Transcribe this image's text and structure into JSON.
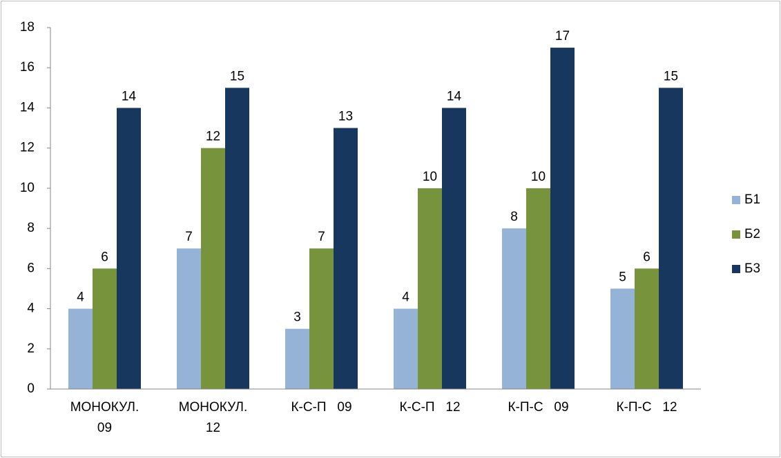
{
  "chart_data": {
    "type": "bar",
    "categories": [
      "МОНОКУЛ. 09",
      "МОНОКУЛ. 12",
      "К-С-П   09",
      "К-С-П   12",
      "К-П-С   09",
      "К-П-С   12"
    ],
    "series": [
      {
        "name": "Б1",
        "color": "#95b3d7",
        "values": [
          4,
          7,
          3,
          4,
          8,
          5
        ]
      },
      {
        "name": "Б2",
        "color": "#77933c",
        "values": [
          6,
          12,
          7,
          10,
          10,
          6
        ]
      },
      {
        "name": "Б3",
        "color": "#17375e",
        "values": [
          14,
          15,
          13,
          14,
          17,
          15
        ]
      }
    ],
    "ylim": [
      0,
      18
    ],
    "yticks": [
      0,
      2,
      4,
      6,
      8,
      10,
      12,
      14,
      16,
      18
    ],
    "legend": "right"
  }
}
